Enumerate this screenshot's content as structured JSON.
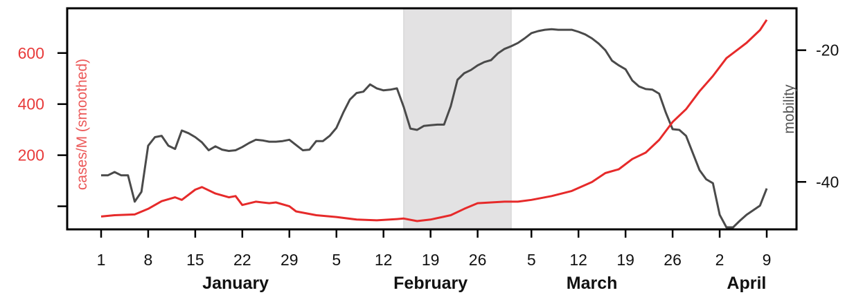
{
  "chart_data": {
    "type": "line",
    "x_unit": "date",
    "x_start": "2020-01-01",
    "x_end": "2020-04-09",
    "shaded_region": {
      "start": "2020-02-15",
      "end": "2020-03-02",
      "color": "#e3e2e3"
    },
    "x_ticks": [
      {
        "date": "2020-01-01",
        "label": "1"
      },
      {
        "date": "2020-01-08",
        "label": "8"
      },
      {
        "date": "2020-01-15",
        "label": "15"
      },
      {
        "date": "2020-01-22",
        "label": "22"
      },
      {
        "date": "2020-01-29",
        "label": "29"
      },
      {
        "date": "2020-02-05",
        "label": "5"
      },
      {
        "date": "2020-02-12",
        "label": "12"
      },
      {
        "date": "2020-02-19",
        "label": "19"
      },
      {
        "date": "2020-02-26",
        "label": "26"
      },
      {
        "date": "2020-03-05",
        "label": "5"
      },
      {
        "date": "2020-03-12",
        "label": "12"
      },
      {
        "date": "2020-03-19",
        "label": "19"
      },
      {
        "date": "2020-03-26",
        "label": "26"
      },
      {
        "date": "2020-04-02",
        "label": "2"
      },
      {
        "date": "2020-04-09",
        "label": "9"
      }
    ],
    "months": [
      {
        "label": "January",
        "date": "2020-01-21"
      },
      {
        "label": "February",
        "date": "2020-02-19"
      },
      {
        "label": "March",
        "date": "2020-03-14"
      },
      {
        "label": "April",
        "date": "2020-04-06"
      }
    ],
    "y_left": {
      "label": "cases/M (smoothed)",
      "range": [
        -85,
        740
      ],
      "ticks": [
        {
          "value": 0,
          "label": ""
        },
        {
          "value": 200,
          "label": "200"
        },
        {
          "value": 400,
          "label": "400"
        },
        {
          "value": 600,
          "label": "600"
        }
      ],
      "color": "#e83a3a"
    },
    "y_right": {
      "label": "mobility",
      "range": [
        -47,
        -15
      ],
      "ticks": [
        {
          "value": -20,
          "label": "-20"
        },
        {
          "value": -40,
          "label": "-40"
        }
      ],
      "color": "#555555"
    },
    "series": [
      {
        "axis": "left",
        "color": "#e62a2a",
        "points": [
          [
            "2020-01-01",
            -40
          ],
          [
            "2020-01-03",
            -35
          ],
          [
            "2020-01-06",
            -32
          ],
          [
            "2020-01-08",
            -10
          ],
          [
            "2020-01-10",
            20
          ],
          [
            "2020-01-12",
            35
          ],
          [
            "2020-01-13",
            25
          ],
          [
            "2020-01-15",
            65
          ],
          [
            "2020-01-16",
            75
          ],
          [
            "2020-01-18",
            50
          ],
          [
            "2020-01-20",
            35
          ],
          [
            "2020-01-21",
            40
          ],
          [
            "2020-01-22",
            5
          ],
          [
            "2020-01-24",
            18
          ],
          [
            "2020-01-26",
            12
          ],
          [
            "2020-01-27",
            15
          ],
          [
            "2020-01-29",
            0
          ],
          [
            "2020-01-30",
            -20
          ],
          [
            "2020-02-02",
            -35
          ],
          [
            "2020-02-05",
            -42
          ],
          [
            "2020-02-08",
            -52
          ],
          [
            "2020-02-11",
            -55
          ],
          [
            "2020-02-14",
            -50
          ],
          [
            "2020-02-15",
            -48
          ],
          [
            "2020-02-17",
            -58
          ],
          [
            "2020-02-19",
            -52
          ],
          [
            "2020-02-22",
            -35
          ],
          [
            "2020-02-24",
            -10
          ],
          [
            "2020-02-26",
            12
          ],
          [
            "2020-03-01",
            18
          ],
          [
            "2020-03-03",
            18
          ],
          [
            "2020-03-05",
            25
          ],
          [
            "2020-03-08",
            40
          ],
          [
            "2020-03-11",
            60
          ],
          [
            "2020-03-14",
            95
          ],
          [
            "2020-03-16",
            130
          ],
          [
            "2020-03-18",
            145
          ],
          [
            "2020-03-20",
            185
          ],
          [
            "2020-03-22",
            210
          ],
          [
            "2020-03-24",
            260
          ],
          [
            "2020-03-26",
            330
          ],
          [
            "2020-03-28",
            380
          ],
          [
            "2020-03-30",
            450
          ],
          [
            "2020-04-01",
            510
          ],
          [
            "2020-04-03",
            580
          ],
          [
            "2020-04-05",
            620
          ],
          [
            "2020-04-06",
            640
          ],
          [
            "2020-04-08",
            690
          ],
          [
            "2020-04-09",
            730
          ]
        ]
      },
      {
        "axis": "right",
        "color": "#4a4a4a",
        "points": [
          [
            "2020-01-01",
            -39
          ],
          [
            "2020-01-02",
            -39
          ],
          [
            "2020-01-03",
            -38.5
          ],
          [
            "2020-01-04",
            -39
          ],
          [
            "2020-01-05",
            -39
          ],
          [
            "2020-01-06",
            -43
          ],
          [
            "2020-01-07",
            -41.5
          ],
          [
            "2020-01-08",
            -34.5
          ],
          [
            "2020-01-09",
            -33.2
          ],
          [
            "2020-01-10",
            -33
          ],
          [
            "2020-01-11",
            -34.5
          ],
          [
            "2020-01-12",
            -35
          ],
          [
            "2020-01-13",
            -32.2
          ],
          [
            "2020-01-14",
            -32.6
          ],
          [
            "2020-01-15",
            -33.2
          ],
          [
            "2020-01-16",
            -34
          ],
          [
            "2020-01-17",
            -35.2
          ],
          [
            "2020-01-18",
            -34.6
          ],
          [
            "2020-01-19",
            -35.1
          ],
          [
            "2020-01-20",
            -35.3
          ],
          [
            "2020-01-21",
            -35.2
          ],
          [
            "2020-01-22",
            -34.7
          ],
          [
            "2020-01-23",
            -34.1
          ],
          [
            "2020-01-24",
            -33.6
          ],
          [
            "2020-01-25",
            -33.7
          ],
          [
            "2020-01-26",
            -33.9
          ],
          [
            "2020-01-27",
            -33.9
          ],
          [
            "2020-01-28",
            -33.8
          ],
          [
            "2020-01-29",
            -33.6
          ],
          [
            "2020-01-30",
            -34.4
          ],
          [
            "2020-01-31",
            -35.2
          ],
          [
            "2020-02-01",
            -35.1
          ],
          [
            "2020-02-02",
            -33.8
          ],
          [
            "2020-02-03",
            -33.8
          ],
          [
            "2020-02-04",
            -33
          ],
          [
            "2020-02-05",
            -31.8
          ],
          [
            "2020-02-06",
            -29.5
          ],
          [
            "2020-02-07",
            -27.5
          ],
          [
            "2020-02-08",
            -26.5
          ],
          [
            "2020-02-09",
            -26.3
          ],
          [
            "2020-02-10",
            -25.2
          ],
          [
            "2020-02-11",
            -25.8
          ],
          [
            "2020-02-12",
            -26.1
          ],
          [
            "2020-02-13",
            -26
          ],
          [
            "2020-02-14",
            -25.8
          ],
          [
            "2020-02-15",
            -28.6
          ],
          [
            "2020-02-16",
            -31.9
          ],
          [
            "2020-02-17",
            -32.1
          ],
          [
            "2020-02-18",
            -31.5
          ],
          [
            "2020-02-19",
            -31.4
          ],
          [
            "2020-02-20",
            -31.3
          ],
          [
            "2020-02-21",
            -31.3
          ],
          [
            "2020-02-22",
            -28.5
          ],
          [
            "2020-02-23",
            -24.5
          ],
          [
            "2020-02-24",
            -23.5
          ],
          [
            "2020-02-25",
            -23
          ],
          [
            "2020-02-26",
            -22.3
          ],
          [
            "2020-02-27",
            -21.8
          ],
          [
            "2020-02-28",
            -21.5
          ],
          [
            "2020-02-29",
            -20.5
          ],
          [
            "2020-03-01",
            -19.8
          ],
          [
            "2020-03-02",
            -19.4
          ],
          [
            "2020-03-03",
            -18.9
          ],
          [
            "2020-03-04",
            -18.2
          ],
          [
            "2020-03-05",
            -17.4
          ],
          [
            "2020-03-06",
            -17.1
          ],
          [
            "2020-03-07",
            -16.9
          ],
          [
            "2020-03-08",
            -16.8
          ],
          [
            "2020-03-09",
            -16.9
          ],
          [
            "2020-03-10",
            -16.9
          ],
          [
            "2020-03-11",
            -16.9
          ],
          [
            "2020-03-12",
            -17.2
          ],
          [
            "2020-03-13",
            -17.6
          ],
          [
            "2020-03-14",
            -18.2
          ],
          [
            "2020-03-15",
            -19
          ],
          [
            "2020-03-16",
            -20
          ],
          [
            "2020-03-17",
            -21.6
          ],
          [
            "2020-03-18",
            -22.3
          ],
          [
            "2020-03-19",
            -22.9
          ],
          [
            "2020-03-20",
            -24.6
          ],
          [
            "2020-03-21",
            -25.5
          ],
          [
            "2020-03-22",
            -25.9
          ],
          [
            "2020-03-23",
            -26
          ],
          [
            "2020-03-24",
            -26.6
          ],
          [
            "2020-03-25",
            -29.5
          ],
          [
            "2020-03-26",
            -32
          ],
          [
            "2020-03-27",
            -32.1
          ],
          [
            "2020-03-28",
            -33
          ],
          [
            "2020-03-29",
            -35.6
          ],
          [
            "2020-03-30",
            -38.2
          ],
          [
            "2020-03-31",
            -39.6
          ],
          [
            "2020-04-01",
            -40.2
          ],
          [
            "2020-04-02",
            -45
          ],
          [
            "2020-04-03",
            -46.9
          ],
          [
            "2020-04-04",
            -46.9
          ],
          [
            "2020-04-05",
            -45.9
          ],
          [
            "2020-04-06",
            -45
          ],
          [
            "2020-04-07",
            -44.3
          ],
          [
            "2020-04-08",
            -43.6
          ],
          [
            "2020-04-09",
            -41
          ]
        ]
      }
    ]
  }
}
